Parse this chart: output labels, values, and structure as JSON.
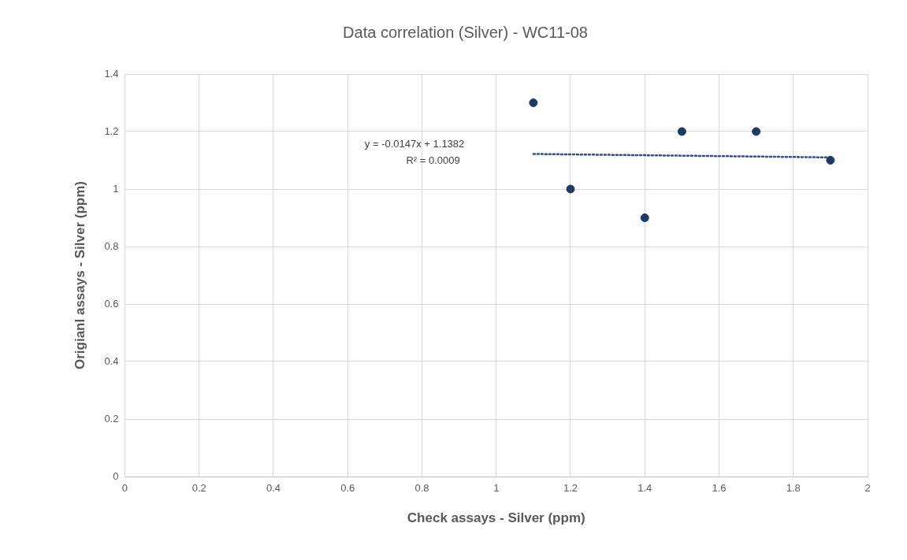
{
  "chart_data": {
    "type": "scatter",
    "title": "Data correlation (Silver) - WC11-08",
    "xlabel": "Check assays - Silver (ppm)",
    "ylabel": "Origianl assays - Silver (ppm)",
    "series": [
      {
        "color": "#1f3864",
        "x": [
          1.1,
          1.2,
          1.4,
          1.5,
          1.7,
          1.9
        ],
        "values": [
          1.3,
          1.0,
          0.9,
          1.2,
          1.2,
          1.1
        ]
      },
      {
        "type": "line",
        "color": "#2f4f8f",
        "line_style": "dotted",
        "marker": "none",
        "x": [
          1.1,
          1.9
        ],
        "values": [
          1.122,
          1.11
        ]
      }
    ],
    "marker": "circle",
    "xlim": [
      0,
      2
    ],
    "xticks": [
      0,
      0.2,
      0.4,
      0.6,
      0.8,
      1,
      1.2,
      1.4,
      1.6,
      1.8,
      2
    ],
    "ylim": [
      0,
      1.4
    ],
    "yticks": [
      0,
      0.2,
      0.4,
      0.6,
      0.8,
      1,
      1.2,
      1.4
    ],
    "grid": true,
    "legend": false,
    "annotations": [
      "y = -0.0147x + 1.1382",
      "R² = 0.0009"
    ]
  }
}
